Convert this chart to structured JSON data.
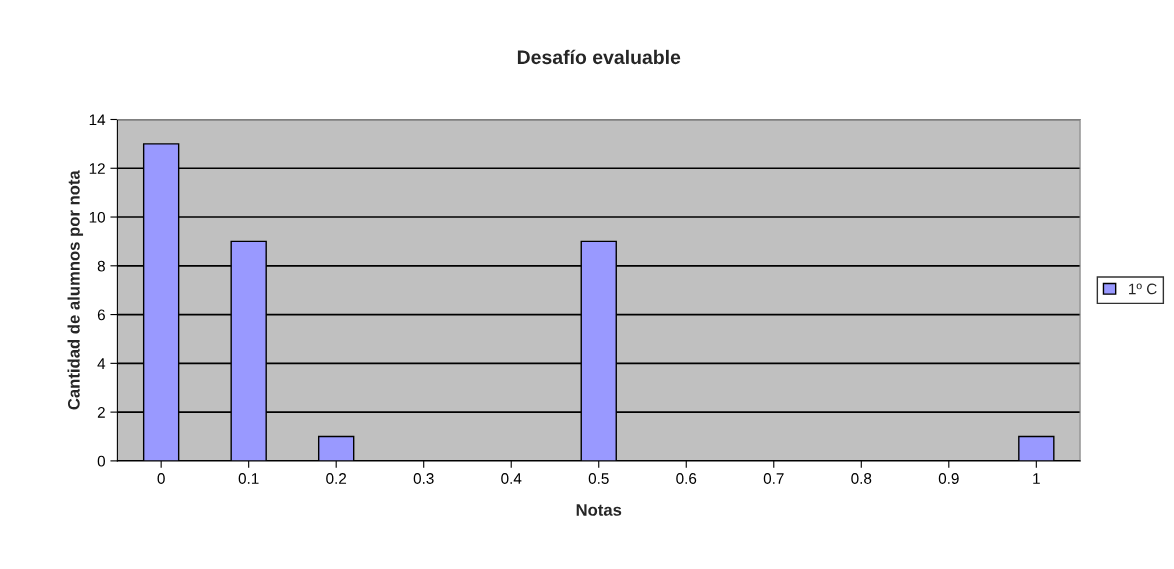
{
  "chart_data": {
    "type": "bar",
    "title": "Desafío evaluable",
    "xlabel": "Notas",
    "ylabel": "Cantidad de alumnos por nota",
    "categories": [
      "0",
      "0.1",
      "0.2",
      "0.3",
      "0.4",
      "0.5",
      "0.6",
      "0.7",
      "0.8",
      "0.9",
      "1"
    ],
    "series": [
      {
        "name": "1º C",
        "color": "#9999ff",
        "values": [
          13,
          9,
          1,
          0,
          0,
          9,
          0,
          0,
          0,
          0,
          1
        ]
      }
    ],
    "ylim": [
      0,
      14
    ],
    "yticks": [
      0,
      2,
      4,
      6,
      8,
      10,
      12,
      14
    ],
    "grid": "y",
    "legend": "right"
  }
}
